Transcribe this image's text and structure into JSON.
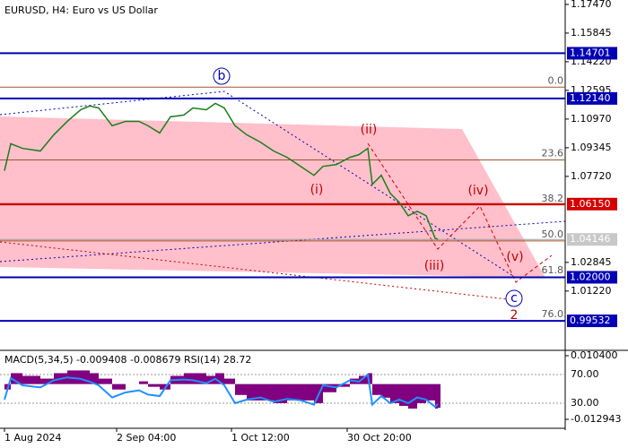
{
  "chart_data": {
    "type": "line",
    "title": "EURUSD, H4:  Euro vs US Dollar",
    "x": [
      5,
      12,
      25,
      45,
      60,
      75,
      90,
      100,
      110,
      125,
      140,
      155,
      165,
      178,
      190,
      205,
      215,
      230,
      240,
      250,
      262,
      275,
      290,
      305,
      320,
      335,
      350,
      360,
      375,
      390,
      400,
      410,
      415,
      425,
      435,
      445,
      455,
      465,
      475,
      485,
      488
    ],
    "values": [
      1.0804,
      1.0957,
      1.0931,
      1.0916,
      1.1008,
      1.1084,
      1.115,
      1.1171,
      1.116,
      1.1059,
      1.1084,
      1.1084,
      1.1059,
      1.1018,
      1.111,
      1.112,
      1.116,
      1.115,
      1.1186,
      1.116,
      1.1059,
      1.1008,
      1.0967,
      1.0916,
      1.088,
      1.0829,
      1.0778,
      1.0829,
      1.0839,
      1.088,
      1.0895,
      1.0931,
      1.0727,
      1.0778,
      1.0676,
      1.0625,
      1.0549,
      1.0574,
      1.0549,
      1.0422,
      1.0415
    ],
    "color": "#1a7f1a",
    "xlim": [
      0,
      630
    ],
    "xticks": [
      {
        "value": 5,
        "label": "1 Aug 2024"
      },
      {
        "value": 130,
        "label": "2 Sep 04:00"
      },
      {
        "value": 258,
        "label": "1 Oct 12:00"
      },
      {
        "value": 387,
        "label": "30 Oct 20:00"
      }
    ],
    "ylim": [
      0.9791,
      1.1772
    ],
    "yticks": [
      {
        "value": 1.1747,
        "label": "1.17470"
      },
      1.15845,
      {
        "value": 1.1422,
        "label": "1.14220"
      },
      1.12595,
      {
        "value": 1.1097,
        "label": "1.10970"
      },
      1.09345,
      {
        "value": 1.0772,
        "label": "1.07720"
      },
      1.02845,
      {
        "value": 1.0122,
        "label": "1.01220"
      }
    ],
    "levels": [
      {
        "price": 1.14701,
        "color": "#0000b4"
      },
      {
        "price": {
          "value": 1.1214,
          "label": "1.12140"
        },
        "color": "#0000b4"
      },
      {
        "price": {
          "value": 1.0615,
          "label": "1.06150"
        },
        "color": "#d40000"
      },
      {
        "price": {
          "value": 1.02,
          "label": "1.02000"
        },
        "color": "#0000b4"
      },
      {
        "price": 0.99532,
        "color": "#0000b4"
      }
    ],
    "current_price": 1.04146,
    "fib": [
      {
        "level": {
          "value": 0,
          "label": "0.0"
        },
        "price": 1.1278
      },
      {
        "level": 23.6,
        "price": 1.0865
      },
      {
        "level": 38.2,
        "price": 1.061
      },
      {
        "level": {
          "value": 50,
          "label": "50.0"
        },
        "price": 1.0406
      },
      {
        "level": 61.8,
        "price": 1.0202
      },
      {
        "level": {
          "value": 76,
          "label": "76.0"
        },
        "price": 0.9953
      }
    ],
    "wave_labels": [
      "b",
      "(ii)",
      "(i)",
      "(iv)",
      "(iii)",
      "(v)",
      "c",
      "2"
    ],
    "macd": {
      "type": "bar",
      "text": "MACD(5,34,5) -0.009408 -0.008679 RSI(14) 28.72",
      "color": "#800080",
      "values": [
        -0.002,
        0.004,
        0.003,
        0.002,
        0.004,
        0.005,
        0.005,
        0.004,
        0.002,
        -0.002,
        0.0,
        0.001,
        -0.001,
        -0.002,
        0.003,
        0.004,
        0.004,
        0.003,
        0.004,
        0.002,
        -0.004,
        -0.006,
        -0.006,
        -0.007,
        -0.006,
        -0.006,
        -0.007,
        -0.003,
        -0.001,
        0.002,
        0.003,
        0.004,
        -0.004,
        -0.005,
        -0.007,
        -0.008,
        -0.009,
        -0.007,
        -0.006,
        -0.009,
        -0.0087
      ],
      "ylim": [
        -0.0159,
        0.01172
      ],
      "yticks": [
        {
          "value": 0.0104,
          "label": "0.010400"
        },
        -0.012943
      ],
      "rsi": {
        "color": "#1e90ff",
        "values": [
          35,
          65,
          55,
          52,
          62,
          66,
          64,
          60,
          55,
          38,
          45,
          48,
          42,
          40,
          62,
          63,
          62,
          58,
          64,
          55,
          30,
          35,
          38,
          32,
          36,
          34,
          28,
          55,
          52,
          62,
          60,
          70,
          28,
          40,
          30,
          35,
          30,
          38,
          35,
          25,
          28.72
        ],
        "ylim": [
          -3.75,
          101.25
        ],
        "yticks": [
          {
            "value": 70,
            "label": "70.00"
          },
          {
            "value": 30,
            "label": "30.00"
          }
        ]
      }
    }
  }
}
